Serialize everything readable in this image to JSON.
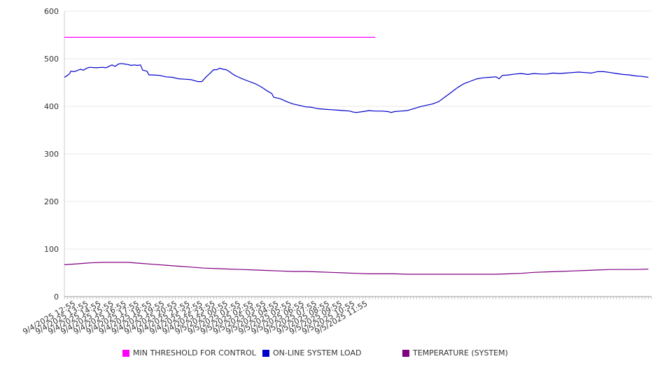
{
  "chart_data": {
    "type": "line",
    "title": "",
    "xlabel": "",
    "ylabel": "",
    "ylim": [
      0,
      600
    ],
    "yticks": [
      0,
      100,
      200,
      300,
      400,
      500,
      600
    ],
    "grid": true,
    "legend_position": "bottom",
    "x_tick_labels": [
      "9/4/2025 12:55",
      "9/4/2025 13:55",
      "9/4/2025 14:55",
      "9/4/2025 15:55",
      "9/4/2025 16:55",
      "9/4/2025 17:55",
      "9/4/2025 18:55",
      "9/4/2025 19:55",
      "9/4/2025 20:55",
      "9/4/2025 21:55",
      "9/4/2025 22:55",
      "9/4/2025 23:55",
      "9/5/2025 00:55",
      "9/5/2025 01:55",
      "9/5/2025 02:55",
      "9/5/2025 03:55",
      "9/5/2025 04:55",
      "9/5/2025 05:55",
      "9/5/2025 06:55",
      "9/5/2025 07:55",
      "9/5/2025 08:55",
      "9/5/2025 09:55",
      "9/5/2025 10:55",
      "9/5/2025 11:55"
    ],
    "series": [
      {
        "name": "MIN THRESHOLD FOR CONTROL",
        "color": "#ff00ff",
        "points": [
          [
            "9/4/2025 12:00",
            545
          ],
          [
            "9/5/2025 12:30",
            545
          ]
        ]
      },
      {
        "name": "ON-LINE SYSTEM LOAD",
        "color": "#0000cc",
        "points": [
          [
            "9/4/2025 12:00",
            461
          ],
          [
            "9/4/2025 12:15",
            465
          ],
          [
            "9/4/2025 12:25",
            469
          ],
          [
            "9/4/2025 12:30",
            474
          ],
          [
            "9/4/2025 12:45",
            473
          ],
          [
            "9/4/2025 13:00",
            475
          ],
          [
            "9/4/2025 13:15",
            478
          ],
          [
            "9/4/2025 13:30",
            476
          ],
          [
            "9/4/2025 13:45",
            480
          ],
          [
            "9/4/2025 14:00",
            482
          ],
          [
            "9/4/2025 14:30",
            481
          ],
          [
            "9/4/2025 15:00",
            482
          ],
          [
            "9/4/2025 15:15",
            481
          ],
          [
            "9/4/2025 15:30",
            484
          ],
          [
            "9/4/2025 15:45",
            487
          ],
          [
            "9/4/2025 16:00",
            484
          ],
          [
            "9/4/2025 16:15",
            489
          ],
          [
            "9/4/2025 16:30",
            490
          ],
          [
            "9/4/2025 16:45",
            489
          ],
          [
            "9/4/2025 17:00",
            488
          ],
          [
            "9/4/2025 17:15",
            486
          ],
          [
            "9/4/2025 17:30",
            487
          ],
          [
            "9/4/2025 17:45",
            486
          ],
          [
            "9/4/2025 18:00",
            487
          ],
          [
            "9/4/2025 18:10",
            476
          ],
          [
            "9/4/2025 18:30",
            474
          ],
          [
            "9/4/2025 18:40",
            466
          ],
          [
            "9/4/2025 19:00",
            466
          ],
          [
            "9/4/2025 19:30",
            465
          ],
          [
            "9/4/2025 20:00",
            462
          ],
          [
            "9/4/2025 20:30",
            461
          ],
          [
            "9/4/2025 21:00",
            458
          ],
          [
            "9/4/2025 21:30",
            457
          ],
          [
            "9/4/2025 22:00",
            456
          ],
          [
            "9/4/2025 22:30",
            452
          ],
          [
            "9/4/2025 22:50",
            452
          ],
          [
            "9/4/2025 23:10",
            462
          ],
          [
            "9/4/2025 23:30",
            470
          ],
          [
            "9/4/2025 23:45",
            477
          ],
          [
            "9/5/2025 00:00",
            477
          ],
          [
            "9/5/2025 00:15",
            480
          ],
          [
            "9/5/2025 00:30",
            478
          ],
          [
            "9/5/2025 00:45",
            477
          ],
          [
            "9/5/2025 01:00",
            473
          ],
          [
            "9/5/2025 01:15",
            468
          ],
          [
            "9/5/2025 01:30",
            464
          ],
          [
            "9/5/2025 01:45",
            461
          ],
          [
            "9/5/2025 02:00",
            458
          ],
          [
            "9/5/2025 02:30",
            453
          ],
          [
            "9/5/2025 03:00",
            448
          ],
          [
            "9/5/2025 03:30",
            441
          ],
          [
            "9/5/2025 04:00",
            432
          ],
          [
            "9/5/2025 04:20",
            427
          ],
          [
            "9/5/2025 04:30",
            419
          ],
          [
            "9/5/2025 05:00",
            416
          ],
          [
            "9/5/2025 05:30",
            410
          ],
          [
            "9/5/2025 06:00",
            405
          ],
          [
            "9/5/2025 06:30",
            402
          ],
          [
            "9/5/2025 07:00",
            399
          ],
          [
            "9/5/2025 07:30",
            398
          ],
          [
            "9/5/2025 08:00",
            395
          ],
          [
            "9/5/2025 08:30",
            394
          ],
          [
            "9/5/2025 09:00",
            393
          ],
          [
            "9/5/2025 09:30",
            392
          ],
          [
            "9/5/2025 10:00",
            391
          ],
          [
            "9/5/2025 10:30",
            390
          ],
          [
            "9/5/2025 10:45",
            388
          ],
          [
            "9/5/2025 11:00",
            387
          ],
          [
            "9/5/2025 11:30",
            389
          ],
          [
            "9/5/2025 12:00",
            391
          ],
          [
            "9/5/2025 12:30",
            390
          ],
          [
            "9/5/2025 13:00",
            390
          ],
          [
            "9/5/2025 13:30",
            389
          ],
          [
            "9/5/2025 13:45",
            387
          ],
          [
            "9/5/2025 14:00",
            389
          ],
          [
            "9/5/2025 14:30",
            390
          ],
          [
            "9/5/2025 15:00",
            391
          ],
          [
            "9/5/2025 15:30",
            395
          ],
          [
            "9/5/2025 16:00",
            399
          ],
          [
            "9/5/2025 16:30",
            402
          ],
          [
            "9/5/2025 17:00",
            405
          ],
          [
            "9/5/2025 17:30",
            410
          ],
          [
            "9/5/2025 18:00",
            420
          ],
          [
            "9/5/2025 18:30",
            430
          ],
          [
            "9/5/2025 19:00",
            440
          ],
          [
            "9/5/2025 19:30",
            448
          ],
          [
            "9/5/2025 20:00",
            453
          ],
          [
            "9/5/2025 20:30",
            458
          ],
          [
            "9/5/2025 21:00",
            460
          ],
          [
            "9/5/2025 21:30",
            461
          ],
          [
            "9/5/2025 22:00",
            462
          ],
          [
            "9/5/2025 22:15",
            458
          ],
          [
            "9/5/2025 22:30",
            465
          ],
          [
            "9/5/2025 23:00",
            466
          ],
          [
            "9/5/2025 23:30",
            468
          ],
          [
            "9/6/2025 00:00",
            469
          ],
          [
            "9/6/2025 00:30",
            467
          ],
          [
            "9/6/2025 01:00",
            469
          ],
          [
            "9/6/2025 01:30",
            468
          ],
          [
            "9/6/2025 02:00",
            468
          ],
          [
            "9/6/2025 02:30",
            470
          ],
          [
            "9/6/2025 03:00",
            469
          ],
          [
            "9/6/2025 03:30",
            470
          ],
          [
            "9/6/2025 04:00",
            471
          ],
          [
            "9/6/2025 04:30",
            472
          ],
          [
            "9/6/2025 05:00",
            471
          ],
          [
            "9/6/2025 05:30",
            470
          ],
          [
            "9/6/2025 06:00",
            473
          ],
          [
            "9/6/2025 06:30",
            473
          ],
          [
            "9/6/2025 07:00",
            471
          ],
          [
            "9/6/2025 07:30",
            469
          ],
          [
            "9/6/2025 08:00",
            467
          ],
          [
            "9/6/2025 08:30",
            466
          ],
          [
            "9/6/2025 09:00",
            464
          ],
          [
            "9/6/2025 09:30",
            463
          ],
          [
            "9/6/2025 10:00",
            461
          ]
        ]
      },
      {
        "name": "TEMPERATURE (SYSTEM)",
        "color": "#800080",
        "points": [
          [
            "9/4/2025 12:00",
            67
          ],
          [
            "9/4/2025 13:00",
            69
          ],
          [
            "9/4/2025 14:00",
            71
          ],
          [
            "9/4/2025 15:00",
            72
          ],
          [
            "9/4/2025 16:00",
            72
          ],
          [
            "9/4/2025 17:00",
            72
          ],
          [
            "9/4/2025 18:00",
            70
          ],
          [
            "9/4/2025 19:00",
            68
          ],
          [
            "9/4/2025 20:00",
            66
          ],
          [
            "9/4/2025 21:00",
            64
          ],
          [
            "9/4/2025 22:00",
            62
          ],
          [
            "9/4/2025 23:00",
            60
          ],
          [
            "9/5/2025 00:00",
            59
          ],
          [
            "9/5/2025 01:00",
            58
          ],
          [
            "9/5/2025 02:00",
            57
          ],
          [
            "9/5/2025 03:00",
            56
          ],
          [
            "9/5/2025 04:00",
            55
          ],
          [
            "9/5/2025 05:00",
            54
          ],
          [
            "9/5/2025 06:00",
            53
          ],
          [
            "9/5/2025 07:00",
            53
          ],
          [
            "9/5/2025 08:00",
            52
          ],
          [
            "9/5/2025 09:00",
            51
          ],
          [
            "9/5/2025 10:00",
            50
          ],
          [
            "9/5/2025 11:00",
            49
          ],
          [
            "9/5/2025 12:00",
            48
          ],
          [
            "9/5/2025 13:00",
            48
          ],
          [
            "9/5/2025 14:00",
            48
          ],
          [
            "9/5/2025 15:00",
            47
          ],
          [
            "9/5/2025 16:00",
            47
          ],
          [
            "9/5/2025 17:00",
            47
          ],
          [
            "9/5/2025 18:00",
            47
          ],
          [
            "9/5/2025 19:00",
            47
          ],
          [
            "9/5/2025 20:00",
            47
          ],
          [
            "9/5/2025 21:00",
            47
          ],
          [
            "9/5/2025 22:00",
            47
          ],
          [
            "9/5/2025 23:00",
            48
          ],
          [
            "9/6/2025 00:00",
            49
          ],
          [
            "9/6/2025 01:00",
            51
          ],
          [
            "9/6/2025 02:00",
            52
          ],
          [
            "9/6/2025 03:00",
            53
          ],
          [
            "9/6/2025 04:00",
            54
          ],
          [
            "9/6/2025 05:00",
            55
          ],
          [
            "9/6/2025 06:00",
            56
          ],
          [
            "9/6/2025 07:00",
            57
          ],
          [
            "9/6/2025 08:00",
            57
          ],
          [
            "9/6/2025 09:00",
            57
          ],
          [
            "9/6/2025 10:00",
            58
          ]
        ]
      }
    ]
  }
}
